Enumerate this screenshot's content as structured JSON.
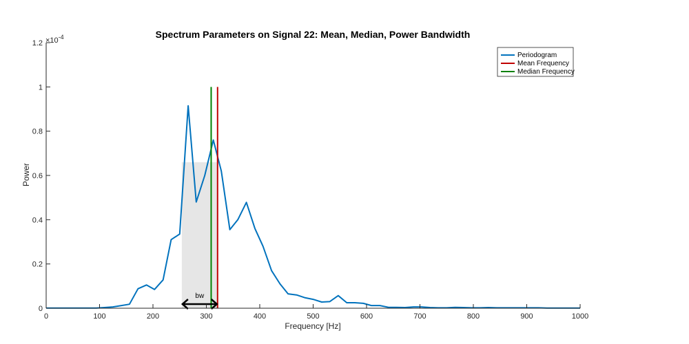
{
  "chart_data": {
    "type": "line",
    "title": "Spectrum Parameters on Signal 22: Mean, Median, Power Bandwidth",
    "xlabel": "Frequency [Hz]",
    "ylabel": "Power",
    "y_exponent_label": "×10",
    "y_exponent": "-4",
    "xlim": [
      0,
      1000
    ],
    "ylim": [
      0,
      1.2
    ],
    "y_scale": "1e-4",
    "x_ticks": [
      "0",
      "100",
      "200",
      "300",
      "400",
      "500",
      "600",
      "700",
      "800",
      "900",
      "1000"
    ],
    "y_ticks": [
      "0",
      "0.2",
      "0.4",
      "0.6",
      "0.8",
      "1",
      "1.2"
    ],
    "grid": false,
    "legend_position": "top-right",
    "colors": {
      "periodogram": "#0072BD",
      "mean": "#C00000",
      "median": "#008000",
      "band": "#E6E6E6",
      "axis": "#262626"
    },
    "series": [
      {
        "name": "Periodogram",
        "x": [
          0,
          16,
          31,
          47,
          63,
          78,
          94,
          109,
          125,
          141,
          156,
          172,
          188,
          203,
          219,
          234,
          250,
          266,
          281,
          297,
          313,
          328,
          344,
          359,
          375,
          391,
          406,
          422,
          438,
          453,
          469,
          484,
          500,
          516,
          531,
          547,
          563,
          578,
          594,
          609,
          625,
          641,
          656,
          672,
          688,
          703,
          719,
          734,
          750,
          766,
          781,
          797,
          813,
          828,
          844,
          859,
          875,
          891,
          906,
          922,
          938,
          953,
          969,
          984,
          1000
        ],
        "y": [
          0.001,
          0.001,
          0.001,
          0.001,
          0.001,
          0.001,
          0.001,
          0.003,
          0.006,
          0.012,
          0.018,
          0.088,
          0.105,
          0.085,
          0.128,
          0.31,
          0.335,
          0.915,
          0.48,
          0.6,
          0.76,
          0.62,
          0.355,
          0.4,
          0.478,
          0.36,
          0.28,
          0.17,
          0.11,
          0.065,
          0.06,
          0.048,
          0.04,
          0.028,
          0.03,
          0.057,
          0.025,
          0.025,
          0.022,
          0.012,
          0.012,
          0.004,
          0.004,
          0.003,
          0.006,
          0.006,
          0.003,
          0.002,
          0.002,
          0.004,
          0.003,
          0.002,
          0.002,
          0.003,
          0.002,
          0.002,
          0.002,
          0.002,
          0.002,
          0.002,
          0.001,
          0.001,
          0.001,
          0.001,
          0.001
        ]
      },
      {
        "name": "Mean Frequency",
        "x": 321,
        "y_range": [
          0,
          1.0
        ]
      },
      {
        "name": "Median Frequency",
        "x": 309,
        "y_range": [
          0,
          1.0
        ]
      }
    ],
    "bandwidth": {
      "x_start": 254,
      "x_end": 321,
      "height": 0.66,
      "label": "bw"
    }
  }
}
